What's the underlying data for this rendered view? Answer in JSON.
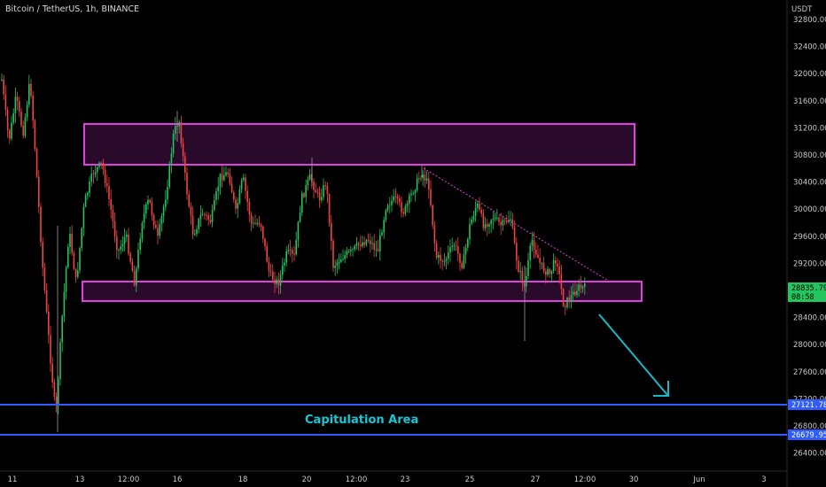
{
  "chart_data": {
    "type": "candlestick",
    "title": "Bitcoin / TetherUS, 1h, BINANCE",
    "currency": "USDT",
    "y_ticks": [
      32800,
      32400,
      32000,
      31600,
      31200,
      30800,
      30400,
      30000,
      29600,
      29200,
      28800,
      28400,
      28000,
      27600,
      27200,
      26800,
      26400
    ],
    "x_ticks": [
      {
        "label": "11"
      },
      {
        "label": "13"
      },
      {
        "label": "12:00"
      },
      {
        "label": "16"
      },
      {
        "label": "18"
      },
      {
        "label": "20"
      },
      {
        "label": "12:00"
      },
      {
        "label": "23"
      },
      {
        "label": "25"
      },
      {
        "label": "27"
      },
      {
        "label": "12:00"
      },
      {
        "label": "30"
      },
      {
        "label": "Jun"
      },
      {
        "label": "3"
      }
    ],
    "resistance_zone": [
      30680,
      31260
    ],
    "support_zone": [
      28580,
      28870
    ],
    "capitulation_lines": [
      27121.78,
      26679.95
    ],
    "capitulation_labels": [
      "27121.78",
      "26679.95"
    ],
    "capitulation_label": "Capitulation Area",
    "current_price": "28835.79",
    "countdown": "08:58",
    "colors": {
      "up": "#22c55e",
      "down": "#ef4444",
      "zone": "#e040e0",
      "zone_fill": "#2a0a2a",
      "capitulation": "#2f5bff",
      "arrow": "#17b8c8",
      "price_badge": "#22c55e"
    }
  }
}
